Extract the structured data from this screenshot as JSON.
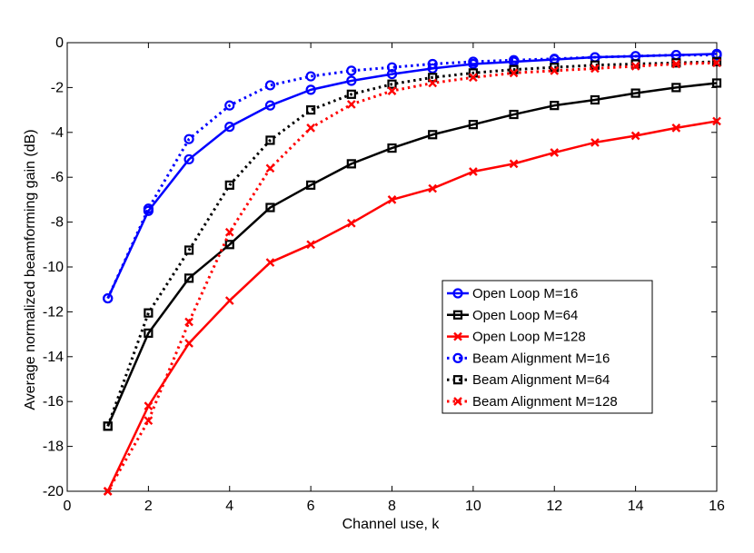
{
  "chart_data": {
    "type": "line",
    "title": "",
    "xlabel": "Channel use, k",
    "ylabel": "Average normalized beamforming gain (dB)",
    "xlim": [
      0,
      16
    ],
    "ylim": [
      -20,
      0
    ],
    "xticks": [
      0,
      2,
      4,
      6,
      8,
      10,
      12,
      14,
      16
    ],
    "yticks": [
      0,
      -2,
      -4,
      -6,
      -8,
      -10,
      -12,
      -14,
      -16,
      -18,
      -20
    ],
    "grid": false,
    "legend_position": "center-right",
    "x": [
      1,
      2,
      3,
      4,
      5,
      6,
      7,
      8,
      9,
      10,
      11,
      12,
      13,
      14,
      15,
      16
    ],
    "series": [
      {
        "name": "Open Loop M=16",
        "color": "#0000ff",
        "line": "solid",
        "marker": "circle",
        "values": [
          -11.4,
          -7.5,
          -5.2,
          -3.75,
          -2.8,
          -2.1,
          -1.7,
          -1.4,
          -1.15,
          -0.95,
          -0.85,
          -0.75,
          -0.65,
          -0.6,
          -0.55,
          -0.5
        ]
      },
      {
        "name": "Open Loop M=64",
        "color": "#000000",
        "line": "solid",
        "marker": "square",
        "values": [
          -17.1,
          -12.95,
          -10.5,
          -9.0,
          -7.35,
          -6.35,
          -5.4,
          -4.7,
          -4.1,
          -3.65,
          -3.2,
          -2.8,
          -2.55,
          -2.25,
          -2.0,
          -1.8
        ]
      },
      {
        "name": "Open Loop M=128",
        "color": "#ff0000",
        "line": "solid",
        "marker": "x",
        "values": [
          -20.0,
          -16.2,
          -13.4,
          -11.5,
          -9.8,
          -9.0,
          -8.05,
          -7.0,
          -6.5,
          -5.75,
          -5.4,
          -4.9,
          -4.45,
          -4.15,
          -3.8,
          -3.5
        ]
      },
      {
        "name": "Beam Alignment M=16",
        "color": "#0000ff",
        "line": "dotted",
        "marker": "circle",
        "values": [
          -11.4,
          -7.4,
          -4.3,
          -2.8,
          -1.9,
          -1.5,
          -1.25,
          -1.1,
          -0.95,
          -0.85,
          -0.78,
          -0.72,
          -0.65,
          -0.6,
          -0.55,
          -0.55
        ]
      },
      {
        "name": "Beam Alignment M=64",
        "color": "#000000",
        "line": "dotted",
        "marker": "square",
        "values": [
          -17.1,
          -12.05,
          -9.25,
          -6.35,
          -4.35,
          -3.0,
          -2.3,
          -1.85,
          -1.55,
          -1.35,
          -1.2,
          -1.1,
          -1.0,
          -0.95,
          -0.9,
          -0.85
        ]
      },
      {
        "name": "Beam Alignment M=128",
        "color": "#ff0000",
        "line": "dotted",
        "marker": "x",
        "values": [
          -20.0,
          -16.85,
          -12.45,
          -8.45,
          -5.6,
          -3.8,
          -2.75,
          -2.15,
          -1.8,
          -1.55,
          -1.35,
          -1.25,
          -1.15,
          -1.05,
          -0.95,
          -0.9
        ]
      }
    ]
  }
}
